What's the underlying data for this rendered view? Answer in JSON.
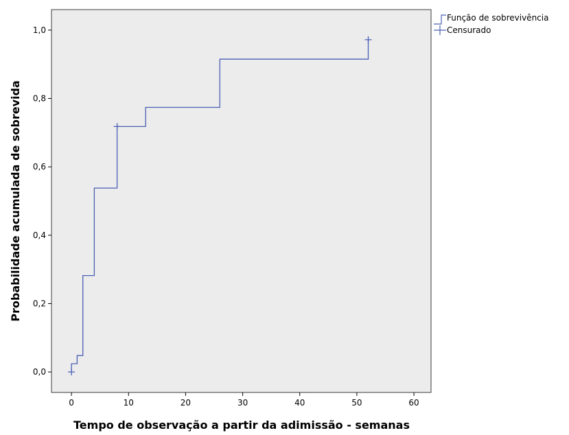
{
  "chart_data": {
    "type": "line",
    "title": "",
    "xlabel": "Tempo de observação a partir da adimissão - semanas",
    "ylabel": "Probabilidade acumulada de sobrevida",
    "xlim": [
      -3.5,
      63
    ],
    "ylim": [
      -0.06,
      1.06
    ],
    "x_ticks": [
      0,
      10,
      20,
      30,
      40,
      50,
      60
    ],
    "x_tick_labels": [
      "0",
      "10",
      "20",
      "30",
      "40",
      "50",
      "60"
    ],
    "y_ticks": [
      0.0,
      0.2,
      0.4,
      0.6,
      0.8,
      1.0
    ],
    "y_tick_labels": [
      "0,0",
      "0,2",
      "0,4",
      "0,6",
      "0,8",
      "1,0"
    ],
    "grid": false,
    "plot_background": "#ececec",
    "series_color": "#4a5fb4",
    "legend_position": "top-right-outside",
    "legend": [
      {
        "label": "Função de sobrevivência",
        "marker": "step-line"
      },
      {
        "label": "Censurado",
        "marker": "plus"
      }
    ],
    "series": [
      {
        "name": "Função de sobrevivência",
        "step": true,
        "points": [
          {
            "x": 0,
            "y": 0.0
          },
          {
            "x": 0,
            "y": 0.024
          },
          {
            "x": 1,
            "y": 0.024
          },
          {
            "x": 1,
            "y": 0.048
          },
          {
            "x": 2,
            "y": 0.048
          },
          {
            "x": 2,
            "y": 0.282
          },
          {
            "x": 4,
            "y": 0.282
          },
          {
            "x": 4,
            "y": 0.538
          },
          {
            "x": 8,
            "y": 0.538
          },
          {
            "x": 8,
            "y": 0.718
          },
          {
            "x": 13,
            "y": 0.718
          },
          {
            "x": 13,
            "y": 0.774
          },
          {
            "x": 26,
            "y": 0.774
          },
          {
            "x": 26,
            "y": 0.915
          },
          {
            "x": 52,
            "y": 0.915
          },
          {
            "x": 52,
            "y": 0.972
          }
        ]
      },
      {
        "name": "Censurado",
        "points": [
          {
            "x": 0,
            "y": 0.0
          },
          {
            "x": 8,
            "y": 0.718
          },
          {
            "x": 52,
            "y": 0.972
          }
        ]
      }
    ]
  }
}
